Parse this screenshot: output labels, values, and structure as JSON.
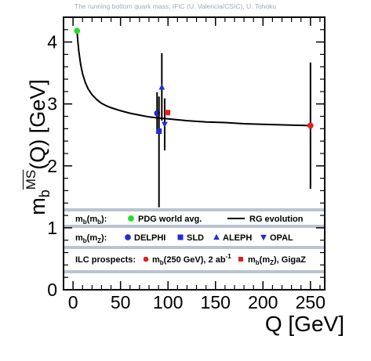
{
  "credit": "The running bottom quark mass, IFIC (U. Valencia/CSIC), U. Tohoku",
  "chart_data": {
    "type": "scatter",
    "xlabel": "Q [GeV]",
    "ylabel": {
      "main": "m",
      "sub": "b",
      "sup": "MS",
      "tail": "(Q) [GeV]"
    },
    "xlim": [
      -10,
      265
    ],
    "ylim": [
      0,
      4.4
    ],
    "xticks": [
      "0",
      "50",
      "100",
      "150",
      "200",
      "250"
    ],
    "xtick_values": [
      0,
      50,
      100,
      150,
      200,
      250
    ],
    "yticks": [
      "0",
      "1",
      "2",
      "3",
      "4"
    ],
    "ytick_values": [
      0,
      1,
      2,
      3,
      4
    ],
    "grid": false,
    "legend_placement": "bottom",
    "rg_evolution": {
      "name": "RG evolution",
      "x": [
        4.18,
        5,
        6,
        8,
        10,
        13,
        16,
        20,
        25,
        30,
        35,
        40,
        50,
        60,
        70,
        80,
        91.19,
        100,
        120,
        140,
        160,
        180,
        200,
        225,
        250
      ],
      "y": [
        4.18,
        4.02,
        3.86,
        3.64,
        3.49,
        3.34,
        3.24,
        3.15,
        3.07,
        3.01,
        2.97,
        2.94,
        2.89,
        2.85,
        2.82,
        2.79,
        2.77,
        2.76,
        2.73,
        2.71,
        2.7,
        2.68,
        2.67,
        2.66,
        2.65
      ]
    },
    "series": [
      {
        "name": "PDG world avg.",
        "color": "#22dd22",
        "marker": "circle",
        "x": 4.18,
        "y": 4.18,
        "ylow": 4.15,
        "yhigh": 4.21
      },
      {
        "name": "DELPHI",
        "color": "#1f2ed1",
        "marker": "circle",
        "x": 88.5,
        "y": 2.85,
        "ylow": 2.53,
        "yhigh": 3.19
      },
      {
        "name": "SLD",
        "color": "#1f2ed1",
        "marker": "square",
        "x": 90.5,
        "y": 2.56,
        "ylow": 1.33,
        "yhigh": 3.12
      },
      {
        "name": "ALEPH",
        "color": "#1f2ed1",
        "marker": "triangle-up",
        "x": 93.5,
        "y": 3.27,
        "ylow": 2.73,
        "yhigh": 3.82
      },
      {
        "name": "OPAL",
        "color": "#1f2ed1",
        "marker": "triangle-down",
        "x": 96.5,
        "y": 2.67,
        "ylow": 2.25,
        "yhigh": 3.09
      },
      {
        "name": "ILC m_b(m_Z), GigaZ",
        "color": "#e02020",
        "marker": "square",
        "x": 99.5,
        "y": 2.86,
        "ylow": 2.82,
        "yhigh": 2.9
      },
      {
        "name": "ILC m_b(250 GeV), 2 ab^-1",
        "color": "#e02020",
        "marker": "circle",
        "x": 250,
        "y": 2.65,
        "ylow": 1.63,
        "yhigh": 3.67
      }
    ],
    "legend": {
      "row1": {
        "label": "m",
        "sub": "b",
        "arg": "(m",
        "argsub": "b",
        "close": "):",
        "items": [
          "PDG world avg.",
          "RG evolution"
        ]
      },
      "row2": {
        "label": "m",
        "sub": "b",
        "arg": "(m",
        "argsub": "Z",
        "close": "):",
        "items": [
          "DELPHI",
          "SLD",
          "ALEPH",
          "OPAL"
        ]
      },
      "row3": {
        "prefix": "ILC prospects:",
        "item1_main": "m",
        "item1_sub": "b",
        "item1_rest": "(250 GeV), 2 ab",
        "item1_sup": "-1",
        "item2_main": "m",
        "item2_sub": "b",
        "item2_arg": "(m",
        "item2_argsub": "Z",
        "item2_rest": "), GigaZ"
      }
    }
  }
}
